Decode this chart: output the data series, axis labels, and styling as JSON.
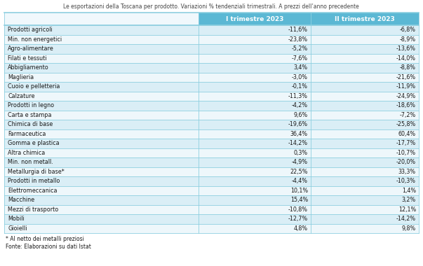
{
  "title": "Le esportazioni della Toscana per prodotto. Variazioni % tendenziali trimestrali. A prezzi dell’anno precedente",
  "col1_header": "I trimestre 2023",
  "col2_header": "II trimestre 2023",
  "rows": [
    {
      "label": "Prodotti agricoli",
      "v1": "-11,6%",
      "v2": "-6,8%"
    },
    {
      "label": "Min. non energetici",
      "v1": "-23,8%",
      "v2": "-8,9%"
    },
    {
      "label": "Agro-alimentare",
      "v1": "-5,2%",
      "v2": "-13,6%"
    },
    {
      "label": "Filati e tessuti",
      "v1": "-7,6%",
      "v2": "-14,0%"
    },
    {
      "label": "Abbigliamento",
      "v1": "3,4%",
      "v2": "-8,8%"
    },
    {
      "label": "Maglieria",
      "v1": "-3,0%",
      "v2": "-21,6%"
    },
    {
      "label": "Cuoio e pelletteria",
      "v1": "-0,1%",
      "v2": "-11,9%"
    },
    {
      "label": "Calzature",
      "v1": "-11,3%",
      "v2": "-24,9%"
    },
    {
      "label": "Prodotti in legno",
      "v1": "-4,2%",
      "v2": "-18,6%"
    },
    {
      "label": "Carta e stampa",
      "v1": "9,6%",
      "v2": "-7,2%"
    },
    {
      "label": "Chimica di base",
      "v1": "-19,6%",
      "v2": "-25,8%"
    },
    {
      "label": "Farmaceutica",
      "v1": "36,4%",
      "v2": "60,4%"
    },
    {
      "label": "Gomma e plastica",
      "v1": "-14,2%",
      "v2": "-17,7%"
    },
    {
      "label": "Altra chimica",
      "v1": "0,3%",
      "v2": "-10,7%"
    },
    {
      "label": "Min. non metall.",
      "v1": "-4,9%",
      "v2": "-20,0%"
    },
    {
      "label": "Metallurgia di base*",
      "v1": "22,5%",
      "v2": "33,3%"
    },
    {
      "label": "Prodotti in metallo",
      "v1": "-4,4%",
      "v2": "-10,3%"
    },
    {
      "label": "Elettromeccanica",
      "v1": "10,1%",
      "v2": "1,4%"
    },
    {
      "label": "Macchine",
      "v1": "15,4%",
      "v2": "3,2%"
    },
    {
      "label": "Mezzi di trasporto",
      "v1": "-10,8%",
      "v2": "12,1%"
    },
    {
      "label": "Mobili",
      "v1": "-12,7%",
      "v2": "-14,2%"
    },
    {
      "label": "Gioielli",
      "v1": "4,8%",
      "v2": "9,8%"
    }
  ],
  "footnote1": "* Al netto dei metalli preziosi",
  "footnote2": "Fonte: Elaborazioni su dati Istat",
  "bg_color": "#ffffff",
  "header_bg": "#5bb8d4",
  "row_bg_odd": "#daeef6",
  "row_bg_even": "#eef7fb",
  "cell_text_color": "#1a1a1a",
  "title_color": "#444444",
  "border_color": "#8ecfe0",
  "header_text_color": "#ffffff"
}
